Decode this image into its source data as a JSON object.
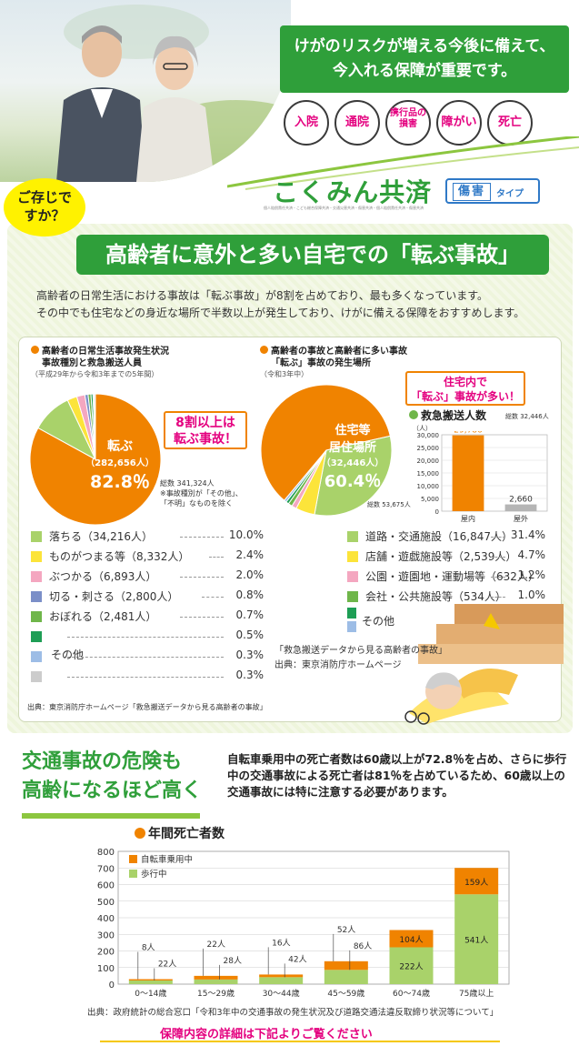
{
  "header": {
    "headline_line1": "けがのリスクが増える今後に備えて、",
    "headline_line2": "今入れる保障が重要です。",
    "coverage_bubbles": [
      "入院",
      "通院",
      "携行品の損害",
      "障がい",
      "死亡"
    ],
    "brand_name": "こくみん共済",
    "brand_fine_print": "個人賠償責任共済・こども総合保障共済・交通災害共済・傷害共済・個人賠償責任共済・傷害共済",
    "type_badge_main": "傷害",
    "type_badge_sub": "タイプ",
    "did_you_know": "ご存じですか？"
  },
  "section1": {
    "title": "高齢者に意外と多い自宅での「転ぶ事故」",
    "intro_line1": "高齢者の日常生活における事故は「転ぶ事故」が8割を占めており、最も多くなっています。",
    "intro_line2": "その中でも住宅などの身近な場所で半数以上が発生しており、けがに備える保障をおすすめします。",
    "left": {
      "title_line1": "高齢者の日常生活事故発生状況",
      "title_line2": "事故種別と救急搬送人員",
      "period": "（平成29年から令和3年までの5年間）",
      "pie_label": "転ぶ",
      "pie_count": "（282,656人）",
      "pie_pct": "82.8％",
      "callout_line1": "8割以上は",
      "callout_line2": "転ぶ事故！",
      "total_note": "総数 341,324人",
      "exclude_note1": "※事故種別が「その他」、",
      "exclude_note2": "「不明」なものを除く",
      "pie_values": [
        82.8,
        10.0,
        2.4,
        2.0,
        0.8,
        0.7,
        0.5,
        0.3,
        0.3
      ],
      "pie_colors": [
        "#f08300",
        "#a9d26a",
        "#fce43a",
        "#f4a7c0",
        "#7b8fc8",
        "#6fb64a",
        "#1e9e55",
        "#9dbde6",
        "#cccccc"
      ],
      "legend": [
        {
          "label": "落ちる（34,216人）",
          "pct": "10.0%",
          "color": "#a9d26a"
        },
        {
          "label": "ものがつまる等（8,332人）",
          "pct": "2.4%",
          "color": "#fce43a"
        },
        {
          "label": "ぶつかる（6,893人）",
          "pct": "2.0%",
          "color": "#f4a7c0"
        },
        {
          "label": "切る・刺さる（2,800人）",
          "pct": "0.8%",
          "color": "#7b8fc8"
        },
        {
          "label": "おぼれる（2,481人）",
          "pct": "0.7%",
          "color": "#6fb64a"
        },
        {
          "label": "",
          "pct": "0.5%",
          "color": "#1e9e55"
        },
        {
          "label": "",
          "pct": "0.3%",
          "color": "#9dbde6"
        },
        {
          "label": "",
          "pct": "0.3%",
          "color": "#cccccc"
        }
      ],
      "other_label": "その他",
      "source": "出典：東京消防庁ホームページ「救急搬送データから見る高齢者の事故」"
    },
    "right": {
      "title_line1": "高齢者の事故と高齢者に多い事故",
      "title_line2": "「転ぶ」事故の発生場所",
      "period": "（令和3年中）",
      "callout_line1": "住宅内で",
      "callout_line2": "「転ぶ」事故が多い！",
      "pie_label_line1": "住宅等",
      "pie_label_line2": "居住場所",
      "pie_count": "（32,446人）",
      "pie_pct": "60.4％",
      "total_note": "総数 53,675人",
      "pie_values": [
        60.4,
        31.4,
        4.7,
        1.2,
        1.0,
        0.7,
        0.6
      ],
      "pie_colors": [
        "#f08300",
        "#a9d26a",
        "#fce43a",
        "#f4a7c0",
        "#6fb64a",
        "#1e9e55",
        "#9dbde6"
      ],
      "legend": [
        {
          "label": "道路・交通施設（16,847人）",
          "pct": "31.4%",
          "color": "#a9d26a"
        },
        {
          "label": "店舗・遊戯施設等（2,539人）",
          "pct": "4.7%",
          "color": "#fce43a"
        },
        {
          "label": "公園・遊園地・運動場等（632人）",
          "pct": "1.2%",
          "color": "#f4a7c0"
        },
        {
          "label": "会社・公共施設等（534人）",
          "pct": "1.0%",
          "color": "#6fb64a"
        }
      ],
      "other_label": "その他",
      "other_colors": [
        "#1e9e55",
        "#9dbde6"
      ],
      "bar_title": "救急搬送人数",
      "bar_unit": "（人）",
      "bar_total": "総数 32,446人",
      "bar_ticks": [
        "30,000",
        "25,000",
        "20,000",
        "15,000",
        "10,000",
        "5,000",
        "0"
      ],
      "source_line1": "「救急搬送データから見る高齢者の事故」",
      "source_line2": "出典：東京消防庁ホームページ"
    }
  },
  "chart_data": [
    {
      "type": "bar",
      "title": "救急搬送人数",
      "ylabel": "（人）",
      "categories": [
        "屋内",
        "屋外"
      ],
      "values": [
        29786,
        2660
      ],
      "value_labels": [
        "29,786",
        "2,660"
      ],
      "ylim": [
        0,
        30000
      ],
      "grid": true
    },
    {
      "type": "bar",
      "title": "年間死亡者数",
      "stacked": true,
      "categories": [
        "0〜14歳",
        "15〜29歳",
        "30〜44歳",
        "45〜59歳",
        "60〜74歳",
        "75歳以上"
      ],
      "series": [
        {
          "name": "歩行中",
          "values": [
            22,
            28,
            42,
            86,
            222,
            541
          ],
          "labels": [
            "22人",
            "28人",
            "42人",
            "86人",
            "222人",
            "541人"
          ]
        },
        {
          "name": "自転車乗用中",
          "values": [
            8,
            22,
            16,
            52,
            104,
            159
          ],
          "labels": [
            "8人",
            "22人",
            "16人",
            "52人",
            "104人",
            "159人"
          ]
        }
      ],
      "yticks": [
        "0",
        "100",
        "200",
        "300",
        "400",
        "500",
        "600",
        "700",
        "800"
      ],
      "ylim": [
        0,
        800
      ],
      "legend_position": "top-left",
      "grid": true
    }
  ],
  "section2": {
    "title_line1": "交通事故の危険も",
    "title_line2": "高齢になるほど高く",
    "text": "自転車乗用中の死亡者数は60歳以上が72.8％を占め、さらに歩行中の交通事故による死亡者は81％を占めているため、60歳以上の交通事故には特に注意する必要があります。",
    "chart_title": "年間死亡者数",
    "source": "出典：政府統計の総合窓口「令和3年中の交通事故の発生状況及び道路交通法違反取締り状況等について」"
  },
  "footer": {
    "text": "保障内容の詳細は下記よりご覧ください"
  }
}
